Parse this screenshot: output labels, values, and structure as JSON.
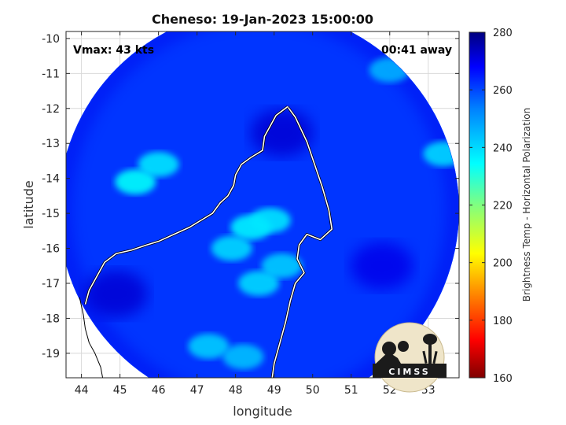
{
  "chart_data": {
    "type": "heatmap",
    "title": "Cheneso: 19-Jan-2023 15:00:00",
    "xlabel": "longitude",
    "ylabel": "latitude",
    "xlim": [
      43.6,
      53.8
    ],
    "ylim": [
      -19.7,
      -9.8
    ],
    "xticks": [
      44,
      45,
      46,
      47,
      48,
      49,
      50,
      51,
      52,
      53
    ],
    "yticks": [
      -10,
      -11,
      -12,
      -13,
      -14,
      -15,
      -16,
      -17,
      -18,
      -19
    ],
    "colorbar": {
      "label": "Brightness Temp - Horizontal Polarization",
      "range": [
        160,
        280
      ],
      "ticks": [
        280,
        260,
        240,
        220,
        200,
        180,
        160
      ],
      "colormap": "jet",
      "colors": [
        "#7f0000",
        "#ff0000",
        "#ff8000",
        "#ffff00",
        "#80ff80",
        "#00ffff",
        "#0080ff",
        "#0000ff",
        "#00007f"
      ]
    },
    "annotations": {
      "vmax": "Vmax: 43 kts",
      "time_away": "00:41 away"
    },
    "swath_center": [
      48.6,
      -14.9
    ],
    "swath_radius_deg": 5.2,
    "background_tb": 262,
    "cold_features": [
      {
        "lon": 45.4,
        "lat": -14.1,
        "tb": 234
      },
      {
        "lon": 46.0,
        "lat": -13.6,
        "tb": 238
      },
      {
        "lon": 48.4,
        "lat": -15.4,
        "tb": 236
      },
      {
        "lon": 48.9,
        "lat": -15.2,
        "tb": 238
      },
      {
        "lon": 47.9,
        "lat": -16.0,
        "tb": 240
      },
      {
        "lon": 49.2,
        "lat": -16.5,
        "tb": 242
      },
      {
        "lon": 48.6,
        "lat": -17.0,
        "tb": 240
      },
      {
        "lon": 47.3,
        "lat": -18.8,
        "tb": 242
      },
      {
        "lon": 48.2,
        "lat": -19.1,
        "tb": 244
      },
      {
        "lon": 53.4,
        "lat": -13.3,
        "tb": 240
      },
      {
        "lon": 52.0,
        "lat": -10.9,
        "tb": 246
      }
    ],
    "warm_features": [
      {
        "lon": 44.9,
        "lat": -17.3,
        "tb": 272
      },
      {
        "lon": 49.2,
        "lat": -12.7,
        "tb": 272
      },
      {
        "lon": 51.8,
        "lat": -16.5,
        "tb": 270
      }
    ],
    "coastline": [
      [
        49.35,
        -11.95
      ],
      [
        49.55,
        -12.25
      ],
      [
        49.85,
        -12.95
      ],
      [
        50.05,
        -13.6
      ],
      [
        50.25,
        -14.25
      ],
      [
        50.42,
        -14.9
      ],
      [
        50.5,
        -15.45
      ],
      [
        50.2,
        -15.75
      ],
      [
        49.85,
        -15.6
      ],
      [
        49.65,
        -15.9
      ],
      [
        49.6,
        -16.3
      ],
      [
        49.78,
        -16.7
      ],
      [
        49.55,
        -17.0
      ],
      [
        49.42,
        -17.5
      ],
      [
        49.3,
        -18.1
      ],
      [
        49.15,
        -18.7
      ],
      [
        49.0,
        -19.3
      ],
      [
        48.95,
        -19.7
      ]
    ],
    "coastline_west": [
      [
        49.35,
        -11.95
      ],
      [
        49.05,
        -12.2
      ],
      [
        48.9,
        -12.5
      ],
      [
        48.75,
        -12.8
      ],
      [
        48.7,
        -13.2
      ],
      [
        48.4,
        -13.4
      ],
      [
        48.15,
        -13.6
      ],
      [
        48.0,
        -13.9
      ],
      [
        47.95,
        -14.2
      ],
      [
        47.8,
        -14.5
      ],
      [
        47.6,
        -14.7
      ],
      [
        47.4,
        -15.0
      ],
      [
        47.1,
        -15.2
      ],
      [
        46.8,
        -15.4
      ],
      [
        46.4,
        -15.6
      ],
      [
        46.0,
        -15.8
      ],
      [
        45.7,
        -15.9
      ],
      [
        45.3,
        -16.05
      ],
      [
        44.9,
        -16.15
      ],
      [
        44.6,
        -16.4
      ],
      [
        44.4,
        -16.8
      ],
      [
        44.2,
        -17.2
      ],
      [
        44.1,
        -17.6
      ]
    ],
    "coastline_mainland": [
      [
        43.95,
        -17.4
      ],
      [
        44.05,
        -17.9
      ],
      [
        44.1,
        -18.3
      ],
      [
        44.2,
        -18.7
      ],
      [
        44.35,
        -19.0
      ],
      [
        44.5,
        -19.4
      ],
      [
        44.55,
        -19.7
      ]
    ]
  },
  "logo": {
    "text": "CIMSS"
  }
}
